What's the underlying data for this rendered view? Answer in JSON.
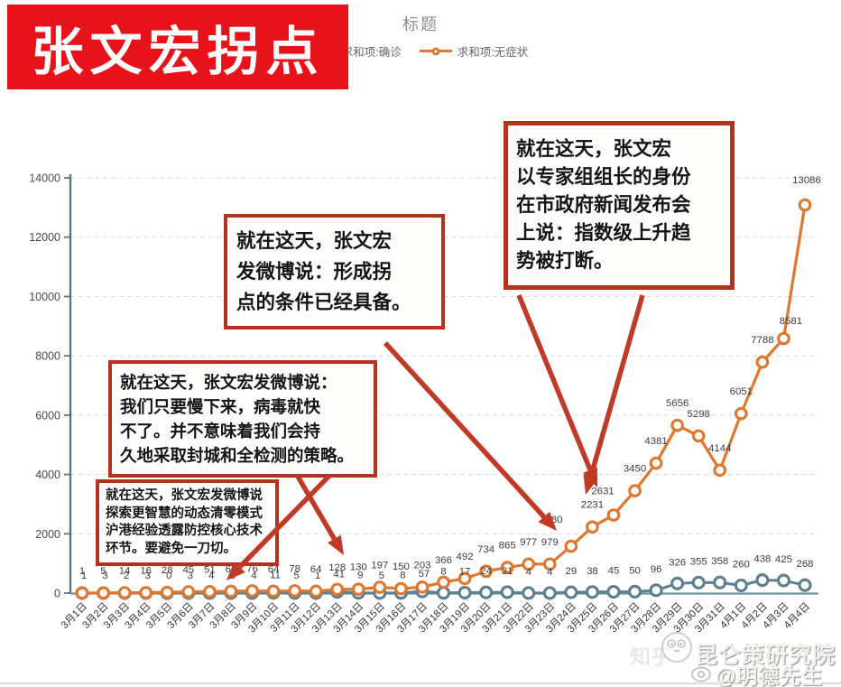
{
  "banner": {
    "text": "张文宏拐点"
  },
  "chart_data": {
    "type": "line",
    "title": "标题",
    "categories": [
      "3月1日",
      "3月2日",
      "3月3日",
      "3月4日",
      "3月5日",
      "3月6日",
      "3月7日",
      "3月8日",
      "3月9日",
      "3月10日",
      "3月11日",
      "3月12日",
      "3月13日",
      "3月14日",
      "3月15日",
      "3月16日",
      "3月17日",
      "3月18日",
      "3月19日",
      "3月20日",
      "3月21日",
      "3月22日",
      "3月23日",
      "3月24日",
      "3月25日",
      "3月26日",
      "3月27日",
      "3月28日",
      "3月29日",
      "3月30日",
      "3月31日",
      "4月1日",
      "4月2日",
      "4月3日",
      "4月4日"
    ],
    "series": [
      {
        "name": "求和项:确诊",
        "color": "#5E7F8E",
        "values": [
          1,
          3,
          2,
          3,
          0,
          3,
          4,
          3,
          4,
          11,
          5,
          1,
          41,
          9,
          5,
          8,
          57,
          8,
          17,
          24,
          31,
          4,
          4,
          29,
          38,
          45,
          50,
          96,
          326,
          355,
          358,
          260,
          438,
          425,
          268
        ]
      },
      {
        "name": "求和项:无症状",
        "color": "#E0772E",
        "values": [
          1,
          5,
          14,
          16,
          28,
          45,
          51,
          62,
          76,
          64,
          78,
          64,
          128,
          130,
          197,
          150,
          203,
          366,
          492,
          734,
          865,
          977,
          979,
          1580,
          2231,
          2631,
          3450,
          4381,
          5656,
          5298,
          4144,
          6051,
          7788,
          8581,
          13086
        ]
      }
    ],
    "ylim": [
      0,
      14000
    ],
    "y_ticks": [
      0,
      2000,
      4000,
      6000,
      8000,
      10000,
      12000,
      14000
    ],
    "grid": "horizontal-dashed",
    "legend_position": "top-center"
  },
  "annotations": [
    {
      "text": "就在这天，张文宏发微博说\n探索更智慧的动态清零模式\n沪港经验透露防控核心技术\n环节。要避免一刀切。"
    },
    {
      "text": "就在这天，张文宏发微博说：\n我们只要慢下来，病毒就快\n不了。并不意味着我们会持\n久地采取封城和全检测的策略。"
    },
    {
      "text": "就在这天，张文宏\n发微博说：形成拐\n点的条件已经具备。"
    },
    {
      "text": "就在这天，张文宏\n以专家组组长的身份\n在市政府新闻发布会\n上说：指数级上升趋\n势被打断。"
    }
  ],
  "watermark": {
    "zhihu": "知乎",
    "org": "昆仑策研究院",
    "user": "@明德先生"
  },
  "colors": {
    "banner_red": "#E8121A",
    "box_border": "#B5321F",
    "arrow": "#C13A26",
    "confirmed": "#5E7F8E",
    "asymptomatic": "#E0772E"
  }
}
